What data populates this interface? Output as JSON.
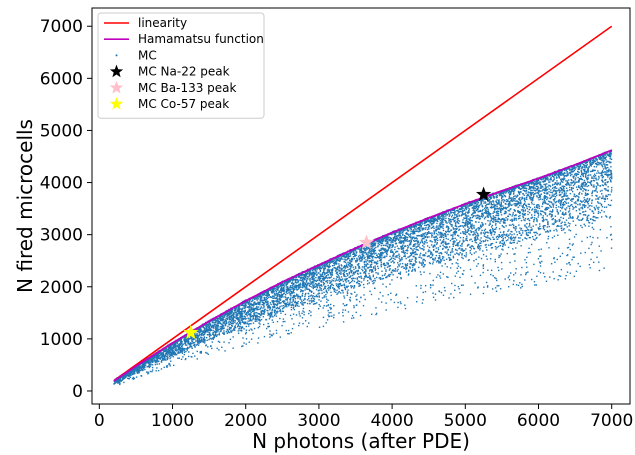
{
  "chart_data": {
    "type": "scatter",
    "xlabel": "N photons (after PDE)",
    "ylabel": "N fired microcells",
    "xlim": [
      -100,
      7250
    ],
    "ylim": [
      -250,
      7350
    ],
    "x_ticks": [
      0,
      1000,
      2000,
      3000,
      4000,
      5000,
      6000,
      7000
    ],
    "y_ticks": [
      0,
      1000,
      2000,
      3000,
      4000,
      5000,
      6000,
      7000
    ],
    "legend_position": "top-left",
    "legend": [
      {
        "label": "linearity",
        "marker": "line",
        "color": "#ff0000"
      },
      {
        "label": "Hamamatsu function",
        "marker": "line",
        "color": "#bf00bf"
      },
      {
        "label": "MC",
        "marker": "dot",
        "color": "#1f77b4"
      },
      {
        "label": "MC Na-22 peak",
        "marker": "star",
        "color": "#000000"
      },
      {
        "label": "MC Ba-133 peak",
        "marker": "star",
        "color": "#ffc0cb"
      },
      {
        "label": "MC Co-57 peak",
        "marker": "star",
        "color": "#ffff00"
      }
    ],
    "series": [
      {
        "name": "linearity",
        "type": "line",
        "color": "#ff0000",
        "x": [
          200,
          7000
        ],
        "y": [
          200,
          7000
        ]
      },
      {
        "name": "Hamamatsu function",
        "type": "line",
        "color": "#bf00bf",
        "x": [
          200,
          500,
          1000,
          1500,
          2000,
          2500,
          3000,
          3500,
          4000,
          4500,
          5000,
          5500,
          6000,
          6500,
          7000
        ],
        "y": [
          195,
          475,
          920,
          1340,
          1730,
          2090,
          2420,
          2740,
          3040,
          3320,
          3590,
          3840,
          4080,
          4340,
          4620
        ]
      },
      {
        "name": "MC",
        "type": "scatter",
        "color": "#1f77b4",
        "x_range": [
          200,
          7000
        ],
        "y_upper_curve": "Hamamatsu function",
        "n_points_approx": 9000
      },
      {
        "name": "MC Na-22 peak",
        "type": "marker",
        "marker": "star",
        "color": "#000000",
        "x": [
          5250
        ],
        "y": [
          3770
        ]
      },
      {
        "name": "MC Ba-133 peak",
        "type": "marker",
        "marker": "star",
        "color": "#ffc0cb",
        "x": [
          3650
        ],
        "y": [
          2850
        ]
      },
      {
        "name": "MC Co-57 peak",
        "type": "marker",
        "marker": "star",
        "color": "#ffff00",
        "x": [
          1250
        ],
        "y": [
          1120
        ]
      }
    ]
  }
}
